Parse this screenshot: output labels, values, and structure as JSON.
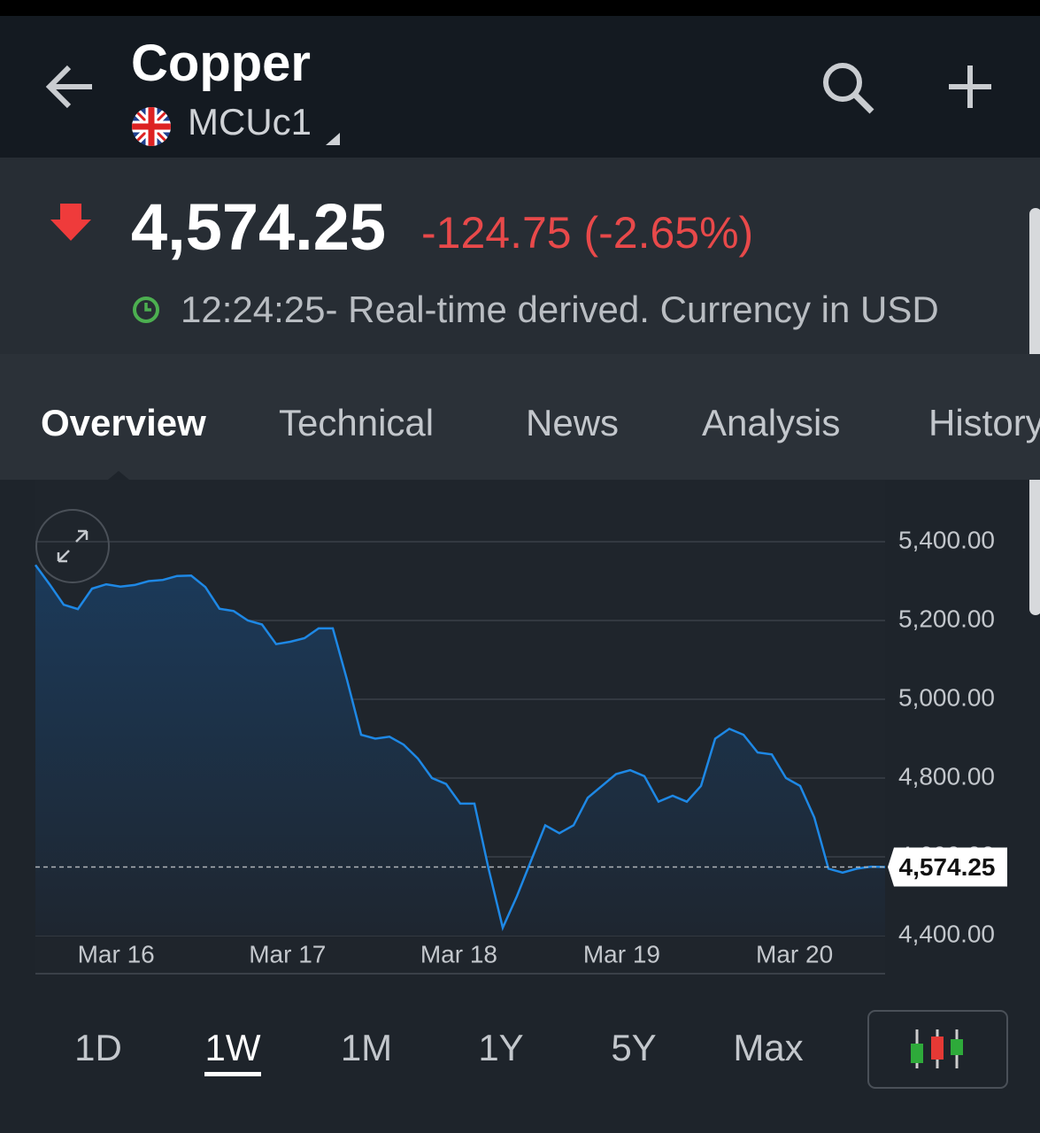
{
  "header": {
    "title": "Copper",
    "symbol": "MCUc1"
  },
  "quote": {
    "price": "4,574.25",
    "change": "-124.75 (-2.65%)",
    "timestamp": "12:24:25- Real-time derived. Currency in USD"
  },
  "tabs": [
    "Overview",
    "Technical",
    "News",
    "Analysis",
    "History"
  ],
  "active_tab": 0,
  "chart_data": {
    "type": "line",
    "color": "#1e88e5",
    "x": [
      0,
      1,
      2,
      3,
      4,
      5,
      6,
      7,
      8,
      9,
      10,
      11,
      12,
      13,
      14,
      15,
      16,
      17,
      18,
      19,
      20,
      21,
      22,
      23,
      24,
      25,
      26,
      27,
      28,
      29,
      30,
      31,
      32,
      33,
      34,
      35,
      36,
      37,
      38,
      39,
      40,
      41,
      42,
      43,
      44,
      45,
      46,
      47,
      48,
      49,
      50,
      51,
      52,
      53,
      54,
      55,
      56,
      57,
      58,
      59,
      60
    ],
    "values": [
      5341,
      5292,
      5240,
      5229,
      5281,
      5292,
      5286,
      5290,
      5300,
      5303,
      5313,
      5314,
      5285,
      5230,
      5224,
      5200,
      5190,
      5140,
      5146,
      5155,
      5180,
      5180,
      5050,
      4910,
      4900,
      4905,
      4885,
      4850,
      4800,
      4785,
      4735,
      4735,
      4570,
      4420,
      4500,
      4590,
      4680,
      4660,
      4680,
      4750,
      4780,
      4810,
      4820,
      4805,
      4740,
      4755,
      4740,
      4780,
      4900,
      4925,
      4910,
      4865,
      4860,
      4800,
      4780,
      4700,
      4570,
      4560,
      4570,
      4575,
      4574.25
    ],
    "xlim": [
      0,
      60
    ],
    "xticks": [
      {
        "value": 5.7,
        "label": "Mar 16"
      },
      {
        "value": 17.8,
        "label": "Mar 17"
      },
      {
        "value": 29.9,
        "label": "Mar 18"
      },
      {
        "value": 41.4,
        "label": "Mar 19"
      },
      {
        "value": 53.6,
        "label": "Mar 20"
      }
    ],
    "ylim": [
      4400,
      5500
    ],
    "yticks": [
      {
        "value": 4400,
        "label": "4,400.00"
      },
      {
        "value": 4600,
        "label": "4,600.00"
      },
      {
        "value": 4800,
        "label": "4,800.00"
      },
      {
        "value": 5000,
        "label": "5,000.00"
      },
      {
        "value": 5200,
        "label": "5,200.00"
      },
      {
        "value": 5400,
        "label": "5,400.00"
      }
    ],
    "grid": true,
    "current_value": {
      "value": 4574.25,
      "label": "4,574.25"
    }
  },
  "ranges": [
    "1D",
    "1W",
    "1M",
    "1Y",
    "5Y",
    "Max"
  ],
  "active_range": 1
}
